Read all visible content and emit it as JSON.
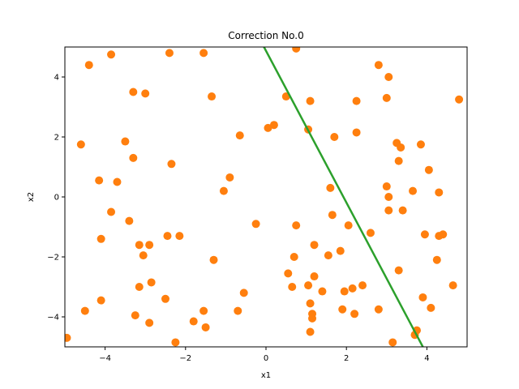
{
  "chart_data": {
    "type": "scatter",
    "title": "Correction No.0",
    "xlabel": "x1",
    "ylabel": "x2",
    "xlim": [
      -5,
      5
    ],
    "ylim": [
      -5,
      5
    ],
    "xticks": [
      -4,
      -2,
      0,
      2,
      4
    ],
    "yticks": [
      -4,
      -2,
      0,
      2,
      4
    ],
    "grid": false,
    "point_color": "#ff7f0e",
    "line_color": "#2ca02c",
    "points": [
      [
        -4.95,
        -4.7
      ],
      [
        -4.6,
        1.75
      ],
      [
        -4.5,
        -3.8
      ],
      [
        -4.4,
        4.4
      ],
      [
        -4.15,
        0.55
      ],
      [
        -4.1,
        -1.4
      ],
      [
        -4.1,
        -3.45
      ],
      [
        -3.85,
        4.75
      ],
      [
        -3.85,
        -0.5
      ],
      [
        -3.7,
        0.5
      ],
      [
        -3.5,
        1.85
      ],
      [
        -3.4,
        -0.8
      ],
      [
        -3.3,
        3.5
      ],
      [
        -3.3,
        1.3
      ],
      [
        -3.25,
        -3.95
      ],
      [
        -3.15,
        -1.6
      ],
      [
        -3.15,
        -3.0
      ],
      [
        -3.05,
        -1.95
      ],
      [
        -3.0,
        3.45
      ],
      [
        -2.9,
        -4.2
      ],
      [
        -2.9,
        -1.6
      ],
      [
        -2.85,
        -2.85
      ],
      [
        -2.5,
        -3.4
      ],
      [
        -2.45,
        -1.3
      ],
      [
        -2.4,
        4.8
      ],
      [
        -2.35,
        1.1
      ],
      [
        -2.25,
        -4.85
      ],
      [
        -2.15,
        -1.3
      ],
      [
        -1.8,
        -4.15
      ],
      [
        -1.55,
        -3.8
      ],
      [
        -1.55,
        4.8
      ],
      [
        -1.5,
        -4.35
      ],
      [
        -1.35,
        3.35
      ],
      [
        -1.3,
        -2.1
      ],
      [
        -1.05,
        0.2
      ],
      [
        -0.9,
        0.65
      ],
      [
        -0.7,
        -3.8
      ],
      [
        -0.65,
        2.05
      ],
      [
        -0.55,
        -3.2
      ],
      [
        -0.25,
        -0.9
      ],
      [
        0.05,
        2.3
      ],
      [
        0.2,
        2.4
      ],
      [
        0.5,
        3.35
      ],
      [
        0.55,
        -2.55
      ],
      [
        0.65,
        -3.0
      ],
      [
        0.7,
        -2.0
      ],
      [
        0.75,
        -0.95
      ],
      [
        0.75,
        4.95
      ],
      [
        1.05,
        -2.95
      ],
      [
        1.05,
        2.25
      ],
      [
        1.1,
        3.2
      ],
      [
        1.1,
        -3.55
      ],
      [
        1.1,
        -4.5
      ],
      [
        1.15,
        -3.9
      ],
      [
        1.15,
        -4.05
      ],
      [
        1.2,
        -1.6
      ],
      [
        1.2,
        -2.65
      ],
      [
        1.4,
        -3.15
      ],
      [
        1.55,
        -1.95
      ],
      [
        1.6,
        0.3
      ],
      [
        1.65,
        -0.6
      ],
      [
        1.7,
        2.0
      ],
      [
        1.85,
        -1.8
      ],
      [
        1.9,
        -3.75
      ],
      [
        1.95,
        -3.15
      ],
      [
        2.05,
        -0.95
      ],
      [
        2.15,
        -3.05
      ],
      [
        2.2,
        -3.9
      ],
      [
        2.25,
        2.15
      ],
      [
        2.25,
        3.2
      ],
      [
        2.4,
        -2.95
      ],
      [
        2.6,
        -1.2
      ],
      [
        2.8,
        4.4
      ],
      [
        2.8,
        -3.75
      ],
      [
        3.0,
        3.3
      ],
      [
        3.0,
        0.35
      ],
      [
        3.05,
        0.0
      ],
      [
        3.05,
        4.0
      ],
      [
        3.05,
        -0.45
      ],
      [
        3.15,
        -4.85
      ],
      [
        3.25,
        1.8
      ],
      [
        3.3,
        1.2
      ],
      [
        3.3,
        -2.45
      ],
      [
        3.35,
        1.65
      ],
      [
        3.4,
        -0.45
      ],
      [
        3.65,
        0.2
      ],
      [
        3.7,
        -4.6
      ],
      [
        3.75,
        -4.45
      ],
      [
        3.85,
        1.75
      ],
      [
        3.9,
        -3.35
      ],
      [
        3.95,
        -1.25
      ],
      [
        4.05,
        0.9
      ],
      [
        4.1,
        -3.7
      ],
      [
        4.25,
        -2.1
      ],
      [
        4.3,
        0.15
      ],
      [
        4.3,
        -1.3
      ],
      [
        4.4,
        -1.25
      ],
      [
        4.65,
        -2.95
      ],
      [
        4.8,
        3.25
      ]
    ],
    "line": [
      [
        -0.05,
        5.0
      ],
      [
        3.9,
        -5.0
      ]
    ]
  }
}
